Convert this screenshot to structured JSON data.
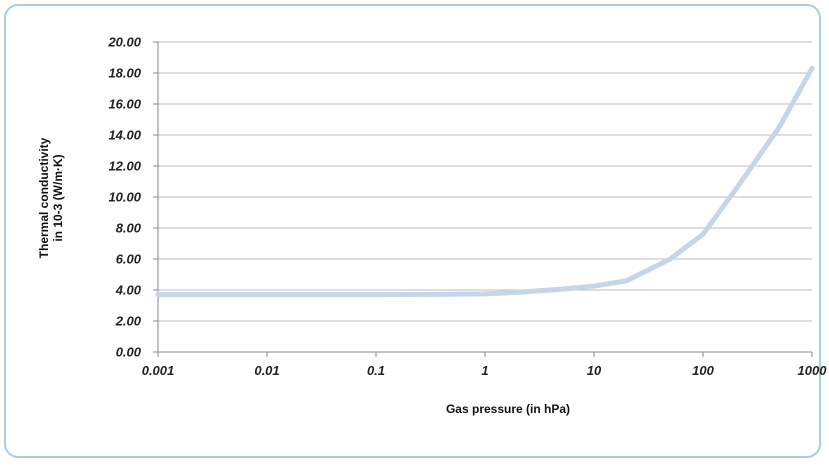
{
  "chart_data": {
    "type": "line",
    "title": "",
    "xlabel": "Gas pressure (in hPa)",
    "ylabel_lines": [
      "Thermal conductivity",
      "in 10-3 (W/m·K)"
    ],
    "x_scale": "log",
    "xlim": [
      0.001,
      1000
    ],
    "ylim": [
      0,
      20
    ],
    "grid": "horizontal",
    "x_ticks": [
      "0.001",
      "0.01",
      "0.1",
      "1",
      "10",
      "100",
      "1000"
    ],
    "y_ticks": [
      "0.00",
      "2.00",
      "4.00",
      "6.00",
      "8.00",
      "10.00",
      "12.00",
      "14.00",
      "16.00",
      "18.00",
      "20.00"
    ],
    "series": [
      {
        "color": "#c5d6e8",
        "x": [
          0.001,
          0.01,
          0.1,
          0.5,
          1,
          2,
          5,
          10,
          20,
          50,
          100,
          200,
          500,
          1000
        ],
        "y": [
          3.7,
          3.7,
          3.7,
          3.72,
          3.75,
          3.85,
          4.05,
          4.25,
          4.6,
          6.0,
          7.6,
          10.5,
          14.5,
          18.3
        ]
      }
    ]
  }
}
